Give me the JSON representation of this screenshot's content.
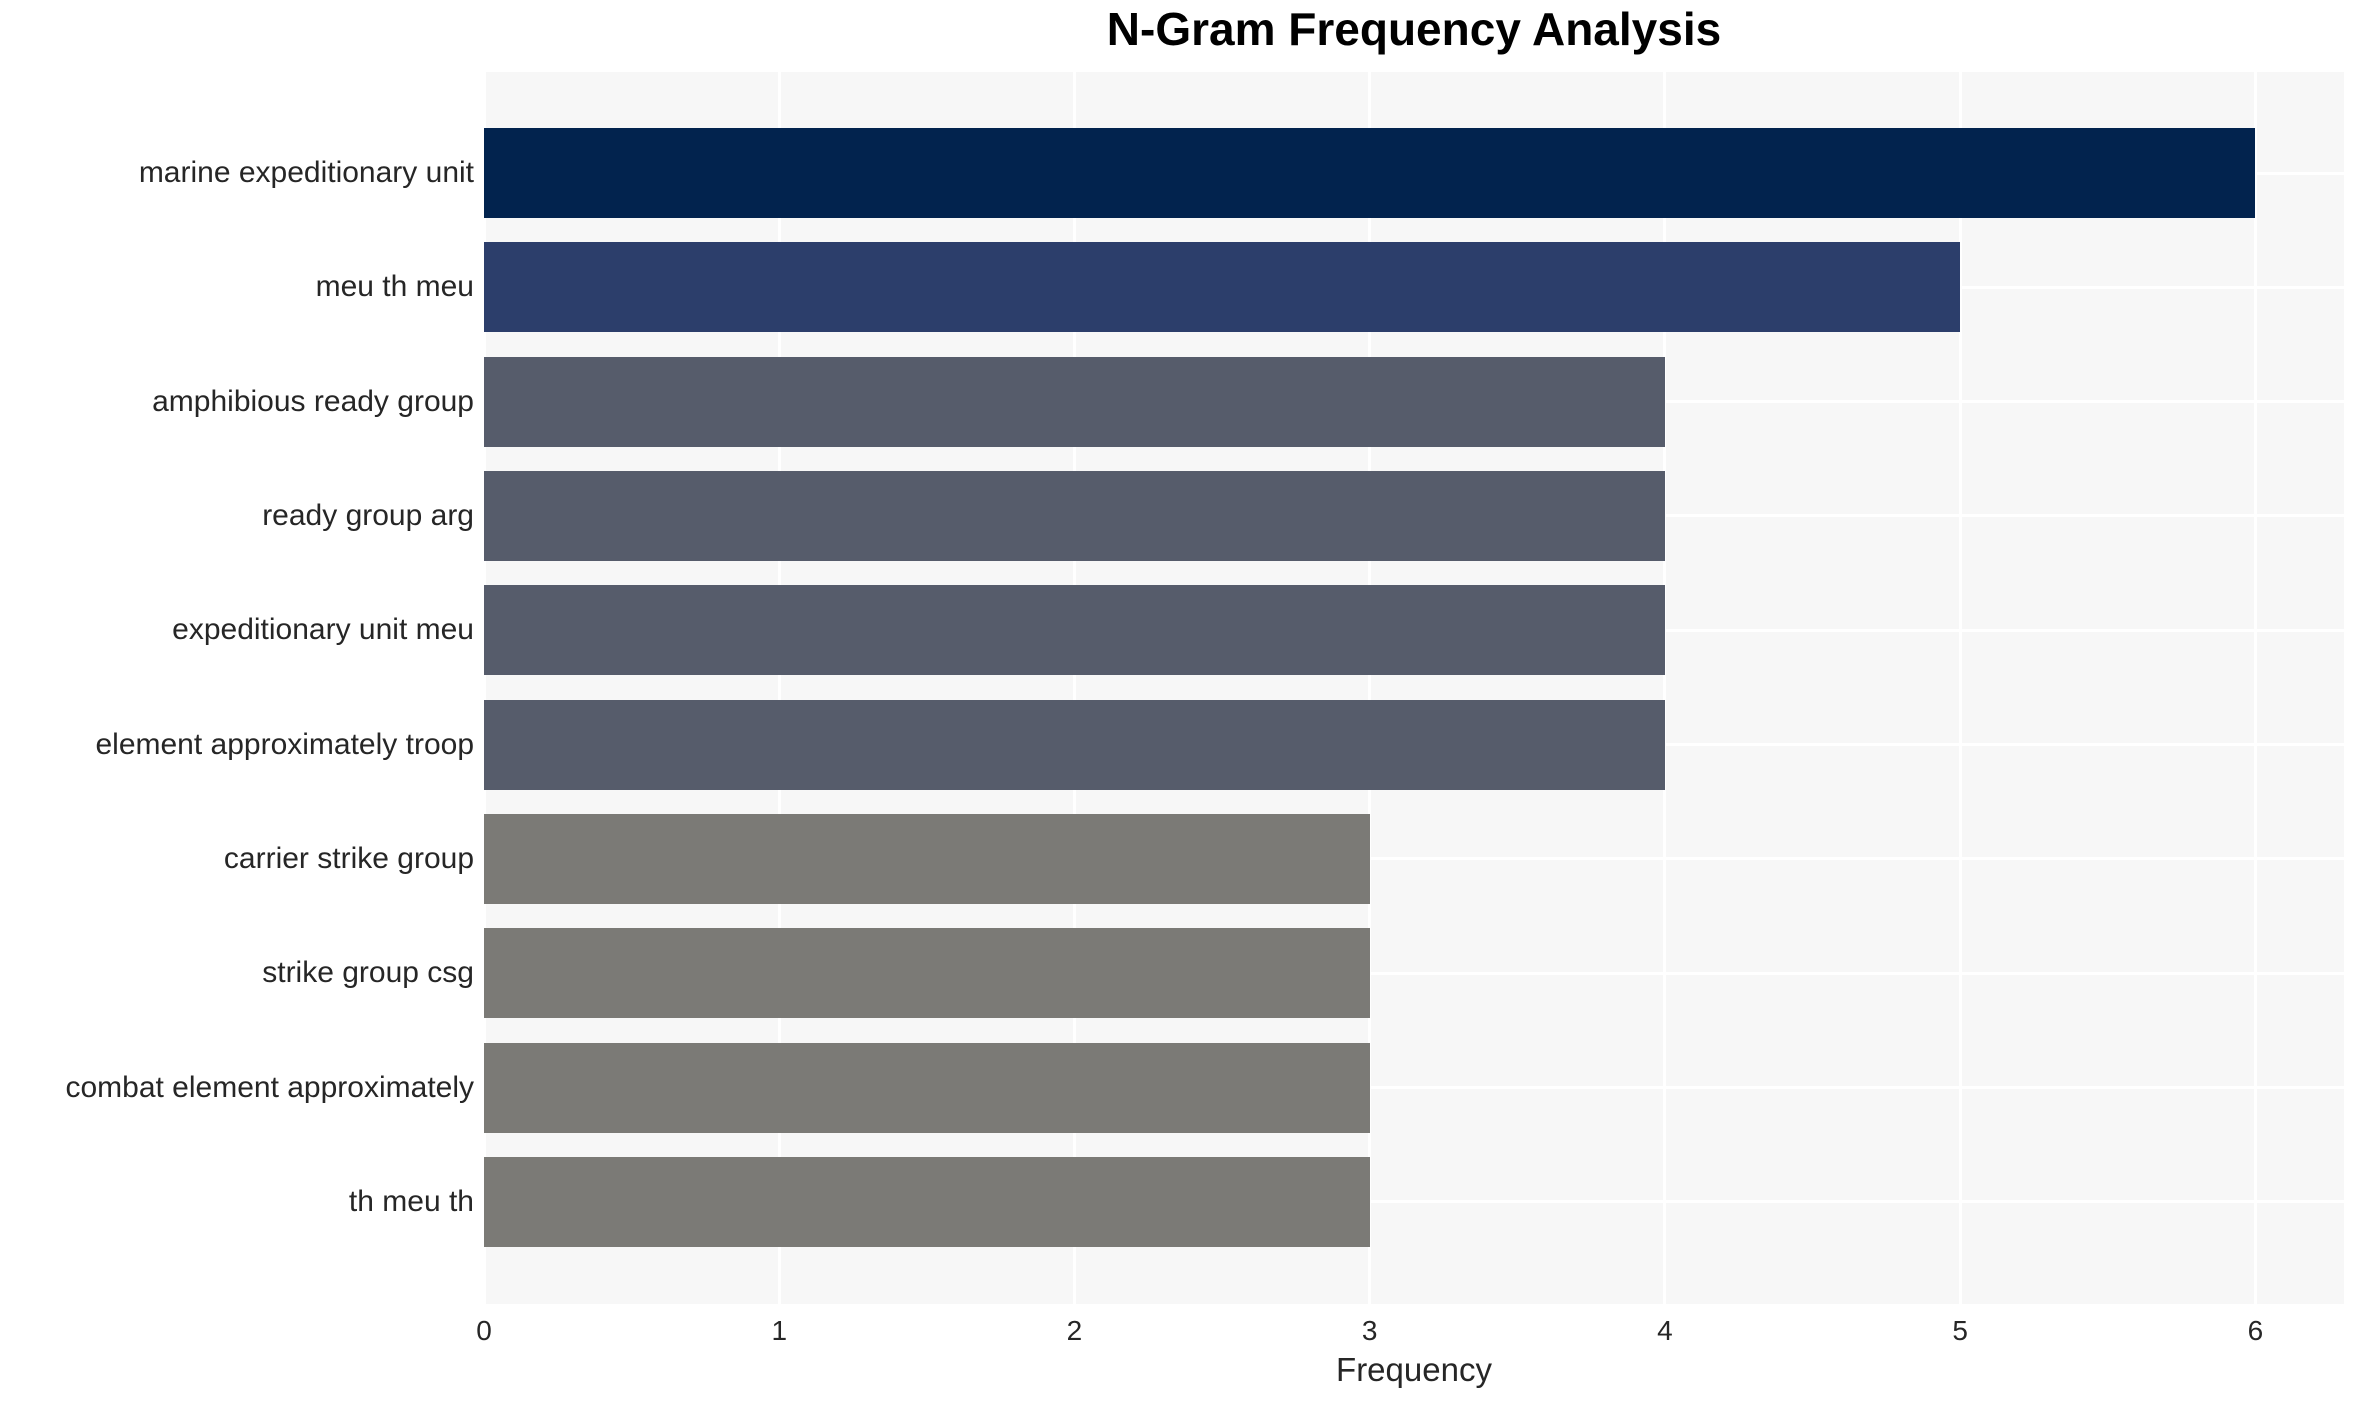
{
  "title": "N-Gram Frequency Analysis",
  "chart_data": {
    "type": "bar",
    "orientation": "horizontal",
    "title": "N-Gram Frequency Analysis",
    "categories": [
      "marine expeditionary unit",
      "meu th meu",
      "amphibious ready group",
      "ready group arg",
      "expeditionary unit meu",
      "element approximately troop",
      "carrier strike group",
      "strike group csg",
      "combat element approximately",
      "th meu th"
    ],
    "values": [
      6,
      5,
      4,
      4,
      4,
      4,
      3,
      3,
      3,
      3
    ],
    "bar_colors": [
      "#02234E",
      "#2C3E6B",
      "#565C6B",
      "#565C6B",
      "#565C6B",
      "#565C6B",
      "#7B7A76",
      "#7B7A76",
      "#7B7A76",
      "#7B7A76"
    ],
    "xlabel": "Frequency",
    "ylabel": "",
    "x_ticks": [
      0,
      1,
      2,
      3,
      4,
      5,
      6
    ],
    "xlim": [
      0,
      6.3
    ],
    "grid": true,
    "legend": "none",
    "colors": {
      "plot_background": "#F7F7F7",
      "figure_background": "#FFFFFF",
      "gridline": "#FFFFFF",
      "text": "#262626",
      "title_text": "#000000"
    }
  }
}
